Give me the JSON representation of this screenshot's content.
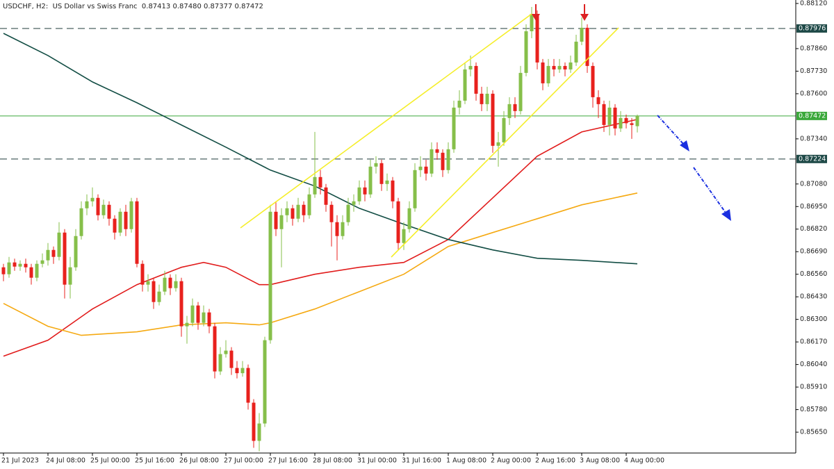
{
  "chart_data": {
    "type": "candlestick",
    "title": "USDCHF, H2:  US Dollar vs Swiss Franc",
    "last_bar": {
      "open": 0.87413,
      "high": {
        "value": 0.8748,
        "label": "0.87480"
      },
      "low": 0.87377,
      "close": 0.87472
    },
    "categories": [
      "21 Jul 2023",
      null,
      null,
      null,
      null,
      null,
      null,
      null,
      "24 Jul 08:00",
      null,
      null,
      null,
      null,
      null,
      null,
      null,
      "25 Jul 00:00",
      null,
      null,
      null,
      null,
      null,
      null,
      null,
      "25 Jul 16:00",
      null,
      null,
      null,
      null,
      null,
      null,
      null,
      "26 Jul 08:00",
      null,
      null,
      null,
      null,
      null,
      null,
      null,
      "27 Jul 00:00",
      null,
      null,
      null,
      null,
      null,
      null,
      null,
      "27 Jul 16:00",
      null,
      null,
      null,
      null,
      null,
      null,
      null,
      "28 Jul 08:00",
      null,
      null,
      null,
      null,
      null,
      null,
      null,
      "31 Jul 00:00",
      null,
      null,
      null,
      null,
      null,
      null,
      null,
      "31 Jul 16:00",
      null,
      null,
      null,
      null,
      null,
      null,
      null,
      "1 Aug 08:00",
      null,
      null,
      null,
      null,
      null,
      null,
      null,
      "2 Aug 00:00",
      null,
      null,
      null,
      null,
      null,
      null,
      null,
      "2 Aug 16:00",
      null,
      null,
      null,
      null,
      null,
      null,
      null,
      "3 Aug 08:00",
      null,
      null,
      null,
      null,
      null,
      null,
      null,
      "4 Aug 00:00",
      null,
      null
    ],
    "open": [
      0.866,
      0.8656,
      0.86628,
      0.86604,
      0.8662,
      0.866,
      0.8654,
      0.8662,
      0.8664,
      0.867,
      0.8666,
      0.868,
      0.865,
      0.866,
      0.8678,
      0.8694,
      0.8698,
      0.87,
      0.869,
      0.8696,
      0.8688,
      0.868,
      0.8692,
      0.8682,
      0.8698,
      0.8662,
      0.865,
      0.8652,
      0.864,
      0.8646,
      0.8654,
      0.8648,
      0.8652,
      0.8626,
      0.8628,
      0.8638,
      0.8628,
      0.8634,
      0.8626,
      0.86,
      0.861,
      0.8612,
      0.8602,
      0.8599,
      0.8602,
      0.8582,
      0.856,
      0.857,
      0.8618,
      0.8692,
      0.8682,
      0.869,
      0.8694,
      0.8688,
      0.8696,
      0.869,
      0.8702,
      0.8712,
      0.8706,
      0.8696,
      0.8686,
      0.8678,
      0.8686,
      0.8696,
      0.8698,
      0.8706,
      0.8702,
      0.8718,
      0.872,
      0.8708,
      0.871,
      0.8698,
      0.8674,
      0.8682,
      0.8694,
      0.8716,
      0.8718,
      0.8714,
      0.8728,
      0.8726,
      0.8716,
      0.8728,
      0.8752,
      0.8756,
      0.8774,
      0.8776,
      0.876,
      0.8754,
      0.876,
      0.873,
      0.8732,
      0.8746,
      0.8754,
      0.875,
      0.8772,
      0.8796,
      0.8806,
      0.8778,
      0.8766,
      0.8776,
      0.8774,
      0.8776,
      0.8774,
      0.8778,
      0.879,
      0.8798,
      0.8776,
      0.8758,
      0.8754,
      0.8742,
      0.8752,
      0.874,
      0.8746,
      0.8743,
      0.87413
    ],
    "high": [
      0.8662,
      0.8666,
      0.8665,
      0.8664,
      0.8665,
      0.8662,
      0.8664,
      0.8668,
      0.8674,
      0.8672,
      0.8686,
      0.8682,
      0.8666,
      0.8682,
      0.8698,
      0.8702,
      0.8706,
      0.8702,
      0.8699,
      0.8698,
      0.869,
      0.8694,
      0.8696,
      0.87,
      0.87,
      0.8664,
      0.8656,
      0.8654,
      0.865,
      0.8658,
      0.8656,
      0.8656,
      0.8654,
      0.8632,
      0.8642,
      0.864,
      0.8638,
      0.8636,
      0.8628,
      0.8614,
      0.8618,
      0.8614,
      0.8606,
      0.8606,
      0.8604,
      0.8584,
      0.8576,
      0.862,
      0.8696,
      0.8698,
      0.8694,
      0.8698,
      0.8696,
      0.87,
      0.8698,
      0.8706,
      0.8738,
      0.8716,
      0.8708,
      0.8698,
      0.869,
      0.869,
      0.87,
      0.8702,
      0.871,
      0.871,
      0.8722,
      0.8724,
      0.8722,
      0.8714,
      0.8712,
      0.87,
      0.8686,
      0.8698,
      0.872,
      0.8724,
      0.8722,
      0.8732,
      0.8732,
      0.8728,
      0.8732,
      0.8756,
      0.8762,
      0.8778,
      0.8782,
      0.8778,
      0.8764,
      0.8764,
      0.8762,
      0.8738,
      0.875,
      0.8758,
      0.8758,
      0.8776,
      0.88,
      0.881,
      0.8808,
      0.878,
      0.878,
      0.878,
      0.878,
      0.8778,
      0.8782,
      0.8794,
      0.8804,
      0.88,
      0.8778,
      0.8762,
      0.8756,
      0.8756,
      0.8754,
      0.875,
      0.8748,
      0.8746,
      0.8748
    ],
    "low": [
      0.8652,
      0.8654,
      0.8658,
      0.8658,
      0.8657,
      0.865,
      0.8652,
      0.866,
      0.8661,
      0.8662,
      0.8664,
      0.8642,
      0.8642,
      0.8658,
      0.8676,
      0.869,
      0.8695,
      0.8687,
      0.8688,
      0.8684,
      0.8676,
      0.8678,
      0.8678,
      0.868,
      0.866,
      0.8646,
      0.8646,
      0.8636,
      0.8638,
      0.8644,
      0.8644,
      0.8646,
      0.862,
      0.8616,
      0.8626,
      0.8624,
      0.8626,
      0.8622,
      0.8596,
      0.8598,
      0.8608,
      0.8598,
      0.8596,
      0.8597,
      0.8578,
      0.8556,
      0.8554,
      0.8568,
      0.8616,
      0.8678,
      0.866,
      0.8686,
      0.8684,
      0.8686,
      0.8686,
      0.8688,
      0.87,
      0.8702,
      0.8692,
      0.8672,
      0.8664,
      0.8676,
      0.8684,
      0.8692,
      0.8696,
      0.8698,
      0.87,
      0.8714,
      0.8704,
      0.8704,
      0.8694,
      0.867,
      0.867,
      0.868,
      0.8692,
      0.8712,
      0.871,
      0.8712,
      0.8722,
      0.8712,
      0.8714,
      0.8726,
      0.8748,
      0.8754,
      0.877,
      0.8756,
      0.875,
      0.875,
      0.8726,
      0.8718,
      0.873,
      0.8742,
      0.8746,
      0.8748,
      0.877,
      0.8792,
      0.8774,
      0.8762,
      0.8764,
      0.877,
      0.8772,
      0.877,
      0.8772,
      0.8776,
      0.8788,
      0.8772,
      0.8752,
      0.8746,
      0.8738,
      0.8736,
      0.8736,
      0.8738,
      0.874,
      0.8734,
      0.87377
    ],
    "close": [
      0.8656,
      0.86628,
      0.86604,
      0.8662,
      0.866,
      0.8654,
      0.8662,
      0.8664,
      0.867,
      0.8666,
      0.868,
      0.865,
      0.866,
      0.8678,
      0.8694,
      0.8698,
      0.87,
      0.869,
      0.8696,
      0.8688,
      0.868,
      0.8692,
      0.8682,
      0.8698,
      0.8662,
      0.865,
      0.8652,
      0.864,
      0.8646,
      0.8654,
      0.8648,
      0.8652,
      0.8626,
      0.8628,
      0.8638,
      0.8628,
      0.8634,
      0.8626,
      0.86,
      0.861,
      0.8612,
      0.8602,
      0.8599,
      0.8602,
      0.8582,
      0.856,
      0.857,
      0.8618,
      0.8692,
      0.8682,
      0.869,
      0.8694,
      0.8688,
      0.8696,
      0.869,
      0.8702,
      0.8712,
      0.8706,
      0.8696,
      0.8686,
      0.8678,
      0.8686,
      0.8696,
      0.8698,
      0.8706,
      0.8702,
      0.8718,
      0.872,
      0.8708,
      0.871,
      0.8698,
      0.8674,
      0.8682,
      0.8694,
      0.8716,
      0.8718,
      0.8714,
      0.8728,
      0.8726,
      0.8716,
      0.8728,
      0.8752,
      0.8756,
      0.8774,
      0.8776,
      0.876,
      0.8754,
      0.876,
      0.873,
      0.8732,
      0.8746,
      0.8754,
      0.875,
      0.8772,
      0.8796,
      0.8806,
      0.8778,
      0.8766,
      0.8776,
      0.8774,
      0.8776,
      0.8774,
      0.8778,
      0.879,
      0.8798,
      0.8776,
      0.8758,
      0.8754,
      0.8742,
      0.8752,
      0.874,
      0.8746,
      0.8743,
      0.8742,
      0.87472
    ],
    "up_color": "#86bf4a",
    "down_color": "#e8211d",
    "lines": [
      {
        "color": "#e11b1b",
        "x": [
          0,
          8,
          16,
          24,
          32,
          36,
          40,
          46,
          48,
          56,
          64,
          72,
          80,
          88,
          96,
          104,
          114
        ],
        "values": [
          0.86088,
          0.8618,
          0.8636,
          0.865,
          0.866,
          0.86628,
          0.866,
          0.865,
          0.865,
          0.8656,
          0.866,
          0.86628,
          0.8676,
          0.87,
          0.8724,
          0.8738,
          0.87452
        ]
      },
      {
        "color": "#f5a911",
        "x": [
          0,
          8,
          14,
          24,
          32,
          40,
          46,
          48,
          56,
          64,
          72,
          80,
          88,
          96,
          104,
          114
        ],
        "values": [
          0.86392,
          0.8626,
          0.86208,
          0.86228,
          0.86268,
          0.8628,
          0.86268,
          0.8628,
          0.8636,
          0.8646,
          0.8656,
          0.8672,
          0.868,
          0.8688,
          0.8696,
          0.87028
        ]
      },
      {
        "color": "#124d44",
        "x": [
          0,
          8,
          16,
          24,
          32,
          40,
          48,
          56,
          64,
          72,
          80,
          88,
          96,
          104,
          114
        ],
        "values": [
          0.87948,
          0.8782,
          0.87668,
          0.87548,
          0.8742,
          0.87292,
          0.8716,
          0.87068,
          0.8694,
          0.86848,
          0.8676,
          0.867,
          0.86652,
          0.8664,
          0.8662
        ]
      }
    ],
    "levels": [
      {
        "value": 0.87976,
        "style": "dashed",
        "color": "#1f4a48"
      },
      {
        "value": 0.87472,
        "style": "solid",
        "color": "#3aa83a"
      },
      {
        "value": 0.87224,
        "style": "dashed",
        "color": "#1f4a48"
      }
    ],
    "xlim": [
      -0.625,
      142.5
    ],
    "ylim": [
      0.8553,
      0.8814
    ],
    "yticks": [
      {
        "value": 0.8812,
        "label": "0.88120"
      },
      {
        "value": 0.8786,
        "label": "0.87860"
      },
      {
        "value": 0.8773,
        "label": "0.87730"
      },
      {
        "value": 0.876,
        "label": "0.87600"
      },
      {
        "value": 0.8734,
        "label": "0.87340"
      },
      {
        "value": 0.8708,
        "label": "0.87080"
      },
      {
        "value": 0.8695,
        "label": "0.86950"
      },
      {
        "value": 0.8682,
        "label": "0.86820"
      },
      {
        "value": 0.8669,
        "label": "0.86690"
      },
      {
        "value": 0.8656,
        "label": "0.86560"
      },
      {
        "value": 0.8643,
        "label": "0.86430"
      },
      {
        "value": 0.863,
        "label": "0.86300"
      },
      {
        "value": 0.8617,
        "label": "0.86170"
      },
      {
        "value": 0.8604,
        "label": "0.86040"
      },
      {
        "value": 0.8591,
        "label": "0.85910"
      },
      {
        "value": 0.8578,
        "label": "0.85780"
      },
      {
        "value": 0.8565,
        "label": "0.85650"
      }
    ],
    "grid": false
  }
}
